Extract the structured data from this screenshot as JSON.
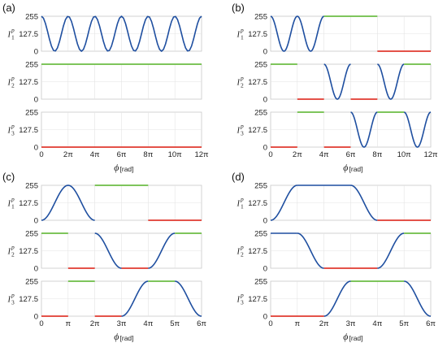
{
  "colors": {
    "blue": "#1f4fa0",
    "green": "#6cbd45",
    "red": "#e03a2f",
    "grid": "#e4e4e4",
    "frame": "#c8c8c8"
  },
  "x_label": {
    "symbol": "ϕ",
    "unit": "[rad]"
  },
  "chart_data": [
    {
      "type": "line",
      "panel": "(a)",
      "xlim": [
        0,
        12
      ],
      "x_unit": "π",
      "x_ticks": [
        0,
        2,
        4,
        6,
        8,
        10,
        12
      ],
      "x_tick_labels": [
        "0",
        "2π",
        "4π",
        "6π",
        "8π",
        "10π",
        "12π"
      ],
      "ylim": [
        0,
        255
      ],
      "y_ticks": [
        0,
        127.5,
        255
      ],
      "y_tick_labels": [
        "0",
        "127.5",
        "255"
      ],
      "grid": true,
      "subplots": [
        {
          "ylabel": "I",
          "ylabel_sup": "p",
          "ylabel_sub": "1",
          "segments": [
            {
              "shape": "cos",
              "x0": 0,
              "x1": 12,
              "cycles": 6,
              "start": 255,
              "color": "blue"
            }
          ]
        },
        {
          "ylabel": "I",
          "ylabel_sup": "p",
          "ylabel_sub": "2",
          "segments": [
            {
              "shape": "const",
              "x0": 0,
              "x1": 12,
              "y": 255,
              "color": "green"
            }
          ]
        },
        {
          "ylabel": "I",
          "ylabel_sup": "p",
          "ylabel_sub": "3",
          "segments": [
            {
              "shape": "const",
              "x0": 0,
              "x1": 12,
              "y": 0,
              "color": "red"
            }
          ]
        }
      ]
    },
    {
      "type": "line",
      "panel": "(b)",
      "xlim": [
        0,
        12
      ],
      "x_unit": "π",
      "x_ticks": [
        0,
        2,
        4,
        6,
        8,
        10,
        12
      ],
      "x_tick_labels": [
        "0",
        "2π",
        "4π",
        "6π",
        "8π",
        "10π",
        "12π"
      ],
      "ylim": [
        0,
        255
      ],
      "y_ticks": [
        0,
        127.5,
        255
      ],
      "y_tick_labels": [
        "0",
        "127.5",
        "255"
      ],
      "grid": true,
      "subplots": [
        {
          "ylabel": "I",
          "ylabel_sup": "p",
          "ylabel_sub": "1",
          "segments": [
            {
              "shape": "cos",
              "x0": 0,
              "x1": 4,
              "cycles": 2,
              "start": 255,
              "color": "blue"
            },
            {
              "shape": "const",
              "x0": 4,
              "x1": 8,
              "y": 255,
              "color": "green"
            },
            {
              "shape": "const",
              "x0": 8,
              "x1": 12,
              "y": 0,
              "color": "red"
            }
          ]
        },
        {
          "ylabel": "I",
          "ylabel_sup": "p",
          "ylabel_sub": "2",
          "segments": [
            {
              "shape": "const",
              "x0": 0,
              "x1": 2,
              "y": 255,
              "color": "green"
            },
            {
              "shape": "const",
              "x0": 2,
              "x1": 4,
              "y": 0,
              "color": "red"
            },
            {
              "shape": "cos",
              "x0": 4,
              "x1": 6,
              "cycles": 1,
              "start": 255,
              "color": "blue"
            },
            {
              "shape": "const",
              "x0": 6,
              "x1": 8,
              "y": 0,
              "color": "red"
            },
            {
              "shape": "cos",
              "x0": 8,
              "x1": 10,
              "cycles": 1,
              "start": 255,
              "color": "blue"
            },
            {
              "shape": "const",
              "x0": 10,
              "x1": 12,
              "y": 255,
              "color": "green"
            }
          ]
        },
        {
          "ylabel": "I",
          "ylabel_sup": "p",
          "ylabel_sub": "3",
          "segments": [
            {
              "shape": "const",
              "x0": 0,
              "x1": 2,
              "y": 0,
              "color": "red"
            },
            {
              "shape": "const",
              "x0": 2,
              "x1": 4,
              "y": 255,
              "color": "green"
            },
            {
              "shape": "const",
              "x0": 4,
              "x1": 6,
              "y": 0,
              "color": "red"
            },
            {
              "shape": "cos",
              "x0": 6,
              "x1": 8,
              "cycles": 1,
              "start": 255,
              "color": "blue"
            },
            {
              "shape": "const",
              "x0": 8,
              "x1": 10,
              "y": 255,
              "color": "green"
            },
            {
              "shape": "cos",
              "x0": 10,
              "x1": 12,
              "cycles": 1,
              "start": 255,
              "color": "blue"
            }
          ]
        }
      ]
    },
    {
      "type": "line",
      "panel": "(c)",
      "xlim": [
        0,
        6
      ],
      "x_unit": "π",
      "x_ticks": [
        0,
        1,
        2,
        3,
        4,
        5,
        6
      ],
      "x_tick_labels": [
        "0",
        "π",
        "2π",
        "3π",
        "4π",
        "5π",
        "6π"
      ],
      "ylim": [
        0,
        255
      ],
      "y_ticks": [
        0,
        127.5,
        255
      ],
      "y_tick_labels": [
        "0",
        "127.5",
        "255"
      ],
      "grid": true,
      "subplots": [
        {
          "ylabel": "I",
          "ylabel_sup": "p",
          "ylabel_sub": "1",
          "segments": [
            {
              "shape": "hump",
              "x0": 0,
              "x1": 2,
              "color": "blue"
            },
            {
              "shape": "const",
              "x0": 2,
              "x1": 4,
              "y": 255,
              "color": "green"
            },
            {
              "shape": "const",
              "x0": 4,
              "x1": 6,
              "y": 0,
              "color": "red"
            }
          ]
        },
        {
          "ylabel": "I",
          "ylabel_sup": "p",
          "ylabel_sub": "2",
          "segments": [
            {
              "shape": "const",
              "x0": 0,
              "x1": 1,
              "y": 255,
              "color": "green"
            },
            {
              "shape": "const",
              "x0": 1,
              "x1": 2,
              "y": 0,
              "color": "red"
            },
            {
              "shape": "ramp",
              "x0": 2,
              "x1": 3,
              "from": 255,
              "to": 0,
              "color": "blue"
            },
            {
              "shape": "const",
              "x0": 3,
              "x1": 4,
              "y": 0,
              "color": "red"
            },
            {
              "shape": "ramp",
              "x0": 4,
              "x1": 5,
              "from": 0,
              "to": 255,
              "color": "blue"
            },
            {
              "shape": "const",
              "x0": 5,
              "x1": 6,
              "y": 255,
              "color": "green"
            }
          ]
        },
        {
          "ylabel": "I",
          "ylabel_sup": "p",
          "ylabel_sub": "3",
          "segments": [
            {
              "shape": "const",
              "x0": 0,
              "x1": 1,
              "y": 0,
              "color": "red"
            },
            {
              "shape": "const",
              "x0": 1,
              "x1": 2,
              "y": 255,
              "color": "green"
            },
            {
              "shape": "const",
              "x0": 2,
              "x1": 3,
              "y": 0,
              "color": "red"
            },
            {
              "shape": "ramp",
              "x0": 3,
              "x1": 4,
              "from": 0,
              "to": 255,
              "color": "blue"
            },
            {
              "shape": "const",
              "x0": 4,
              "x1": 5,
              "y": 255,
              "color": "green"
            },
            {
              "shape": "ramp",
              "x0": 5,
              "x1": 6,
              "from": 255,
              "to": 0,
              "color": "blue"
            }
          ]
        }
      ]
    },
    {
      "type": "line",
      "panel": "(d)",
      "xlim": [
        0,
        6
      ],
      "x_unit": "π",
      "x_ticks": [
        0,
        1,
        2,
        3,
        4,
        5,
        6
      ],
      "x_tick_labels": [
        "0",
        "π",
        "2π",
        "3π",
        "4π",
        "5π",
        "6π"
      ],
      "ylim": [
        0,
        255
      ],
      "y_ticks": [
        0,
        127.5,
        255
      ],
      "y_tick_labels": [
        "0",
        "127.5",
        "255"
      ],
      "grid": true,
      "subplots": [
        {
          "ylabel": "I",
          "ylabel_sup": "p",
          "ylabel_sub": "1",
          "segments": [
            {
              "shape": "ramp",
              "x0": 0,
              "x1": 1,
              "from": 0,
              "to": 255,
              "color": "blue"
            },
            {
              "shape": "const",
              "x0": 1,
              "x1": 3,
              "y": 255,
              "color": "blue"
            },
            {
              "shape": "ramp",
              "x0": 3,
              "x1": 4,
              "from": 255,
              "to": 0,
              "color": "blue"
            },
            {
              "shape": "const",
              "x0": 4,
              "x1": 6,
              "y": 0,
              "color": "red"
            }
          ]
        },
        {
          "ylabel": "I",
          "ylabel_sup": "p",
          "ylabel_sub": "2",
          "segments": [
            {
              "shape": "const",
              "x0": 0,
              "x1": 1,
              "y": 255,
              "color": "blue"
            },
            {
              "shape": "ramp",
              "x0": 1,
              "x1": 2,
              "from": 255,
              "to": 0,
              "color": "blue"
            },
            {
              "shape": "const",
              "x0": 2,
              "x1": 4,
              "y": 0,
              "color": "red"
            },
            {
              "shape": "ramp",
              "x0": 4,
              "x1": 5,
              "from": 0,
              "to": 255,
              "color": "blue"
            },
            {
              "shape": "const",
              "x0": 5,
              "x1": 6,
              "y": 255,
              "color": "green"
            }
          ]
        },
        {
          "ylabel": "I",
          "ylabel_sup": "p",
          "ylabel_sub": "3",
          "segments": [
            {
              "shape": "const",
              "x0": 0,
              "x1": 2,
              "y": 0,
              "color": "red"
            },
            {
              "shape": "ramp",
              "x0": 2,
              "x1": 3,
              "from": 0,
              "to": 255,
              "color": "blue"
            },
            {
              "shape": "const",
              "x0": 3,
              "x1": 5,
              "y": 255,
              "color": "green"
            },
            {
              "shape": "ramp",
              "x0": 5,
              "x1": 6,
              "from": 255,
              "to": 0,
              "color": "blue"
            }
          ]
        }
      ]
    }
  ]
}
